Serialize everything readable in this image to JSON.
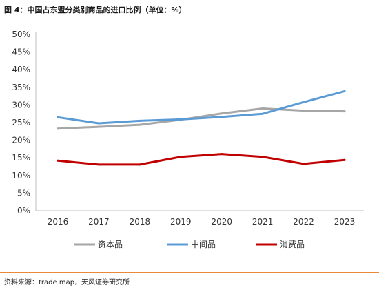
{
  "header": {
    "title": "图 4：中国占东盟分类别商品的进口比例（单位：%）"
  },
  "footer": {
    "source": "资料来源：trade map，天风证券研究所"
  },
  "colors": {
    "capital": "#a6a6a6",
    "intermediate": "#5b9bd5",
    "consumer": "#c00000",
    "accent_rule": "#e8893a"
  },
  "chart_data": {
    "type": "line",
    "x": [
      "2016",
      "2017",
      "2018",
      "2019",
      "2020",
      "2021",
      "2022",
      "2023"
    ],
    "series": [
      {
        "name": "资本品",
        "values": [
          23.3,
          23.8,
          24.4,
          25.8,
          27.6,
          29.0,
          28.4,
          28.2
        ]
      },
      {
        "name": "中间品",
        "values": [
          26.5,
          24.8,
          25.5,
          25.9,
          26.6,
          27.5,
          30.8,
          33.9
        ]
      },
      {
        "name": "消费品",
        "values": [
          14.2,
          13.1,
          13.1,
          15.3,
          16.1,
          15.3,
          13.3,
          14.4
        ]
      }
    ],
    "ylim": [
      0,
      50
    ],
    "yticks": [
      "0%",
      "5%",
      "10%",
      "15%",
      "20%",
      "25%",
      "30%",
      "35%",
      "40%",
      "45%",
      "50%"
    ],
    "grid": false,
    "legend_position": "bottom"
  }
}
